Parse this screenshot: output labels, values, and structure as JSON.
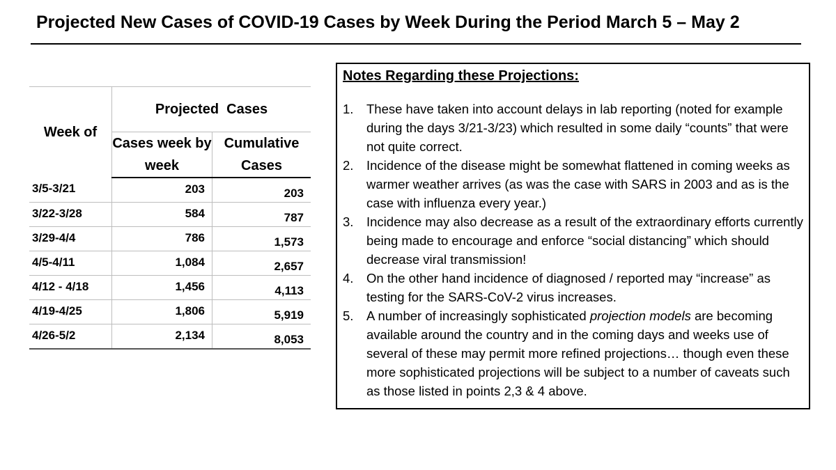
{
  "title": "Projected New Cases of COVID-19 Cases by Week During the Period March 5 – May 2",
  "table": {
    "week_header": "Week of",
    "group_header": "Projected  Cases",
    "col_weekly": "Cases week by week",
    "col_cumulative": "Cumulative Cases",
    "rows": [
      {
        "week": "3/5-3/21",
        "weekly": "203",
        "cumulative": "203"
      },
      {
        "week": "3/22-3/28",
        "weekly": "584",
        "cumulative": "787"
      },
      {
        "week": "3/29-4/4",
        "weekly": "786",
        "cumulative": "1,573"
      },
      {
        "week": "4/5-4/11",
        "weekly": "1,084",
        "cumulative": "2,657"
      },
      {
        "week": "4/12 - 4/18",
        "weekly": "1,456",
        "cumulative": "4,113"
      },
      {
        "week": "4/19-4/25",
        "weekly": "1,806",
        "cumulative": "5,919"
      },
      {
        "week": "4/26-5/2",
        "weekly": "2,134",
        "cumulative": "8,053"
      }
    ]
  },
  "notes": {
    "title": "Notes Regarding these Projections:",
    "items": [
      {
        "num": "1.",
        "text": "These have taken into account delays in lab reporting (noted for example during the days 3/21-3/23) which resulted in some daily “counts” that were not quite correct."
      },
      {
        "num": "2.",
        "text": "Incidence of the disease might be somewhat flattened in coming weeks as warmer weather arrives (as was the case with SARS in 2003 and as is the case with influenza every year.)"
      },
      {
        "num": "3.",
        "text": "Incidence may also decrease as a result of the extraordinary efforts currently being made to encourage and enforce “social distancing” which should decrease viral transmission!"
      },
      {
        "num": "4.",
        "text": "On the other hand incidence of diagnosed / reported may “increase” as testing for the SARS-CoV-2 virus increases."
      },
      {
        "num": "5.",
        "text_before": "A number of increasingly sophisticated ",
        "text_em": "projection models",
        "text_after": " are becoming available around the country and in the coming days and weeks use of several of these may permit more refined projections… though even these more sophisticated projections will be subject to a number of caveats such as those listed in points 2,3 & 4 above."
      }
    ]
  }
}
